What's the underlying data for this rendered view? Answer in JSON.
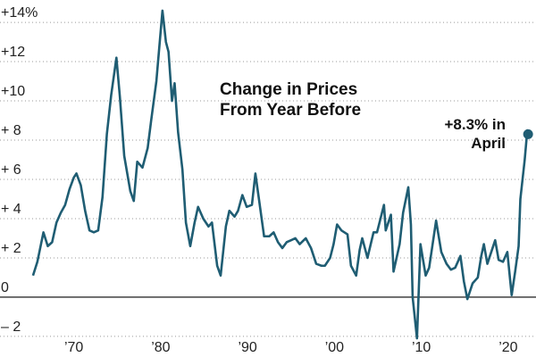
{
  "chart_data": {
    "type": "line",
    "title": [
      "Change in Prices",
      "From Year Before"
    ],
    "annotation": [
      "+8.3% in",
      "April"
    ],
    "xlim": [
      1961.5,
      2023.2
    ],
    "ylim": [
      -3.05,
      15.14
    ],
    "xticks": [
      {
        "value": 1970,
        "label": "’70"
      },
      {
        "value": 1980,
        "label": "’80"
      },
      {
        "value": 1990,
        "label": "’90"
      },
      {
        "value": 2000,
        "label": "’00"
      },
      {
        "value": 2010,
        "label": "’10"
      },
      {
        "value": 2020,
        "label": "’20"
      }
    ],
    "yticks": [
      {
        "value": -2,
        "label": "– 2"
      },
      0,
      {
        "value": 2,
        "label": "+ 2"
      },
      {
        "value": 4,
        "label": "+ 4"
      },
      {
        "value": 6,
        "label": "+ 6"
      },
      {
        "value": 8,
        "label": "+ 8"
      },
      {
        "value": 10,
        "label": "+10"
      },
      {
        "value": 12,
        "label": "+12"
      },
      {
        "value": 14,
        "label": "+14%"
      }
    ],
    "grid": true,
    "series": [
      {
        "color": "#1f5d73",
        "x": [
          1965.3,
          1965.8,
          1966.5,
          1967.0,
          1967.5,
          1968.0,
          1968.5,
          1969.0,
          1969.5,
          1970.0,
          1970.3,
          1970.8,
          1971.3,
          1971.8,
          1972.3,
          1972.8,
          1973.3,
          1973.8,
          1974.3,
          1974.9,
          1975.3,
          1975.8,
          1976.5,
          1976.9,
          1977.3,
          1977.9,
          1978.5,
          1978.9,
          1979.5,
          1980.2,
          1980.6,
          1980.9,
          1981.3,
          1981.6,
          1982.0,
          1982.5,
          1982.9,
          1983.4,
          1983.9,
          1984.3,
          1984.9,
          1985.5,
          1985.9,
          1986.5,
          1986.9,
          1987.5,
          1987.9,
          1988.5,
          1988.9,
          1989.4,
          1989.9,
          1990.5,
          1990.9,
          1991.4,
          1991.9,
          1992.5,
          1993.0,
          1993.5,
          1994.0,
          1994.5,
          1995.0,
          1995.5,
          1996.0,
          1996.7,
          1997.3,
          1997.9,
          1998.5,
          1998.9,
          1999.5,
          1999.9,
          2000.3,
          2000.8,
          2001.5,
          2001.9,
          2002.5,
          2002.9,
          2003.2,
          2003.8,
          2004.5,
          2004.9,
          2005.7,
          2005.9,
          2006.5,
          2006.8,
          2007.5,
          2007.9,
          2008.5,
          2008.8,
          2009.0,
          2009.5,
          2009.9,
          2010.5,
          2010.9,
          2011.7,
          2012.3,
          2012.9,
          2013.4,
          2013.9,
          2014.5,
          2014.9,
          2015.3,
          2015.9,
          2016.5,
          2016.9,
          2017.2,
          2017.6,
          2018.5,
          2018.9,
          2019.4,
          2019.9,
          2020.4,
          2020.8,
          2021.2,
          2021.4,
          2021.9,
          2022.2,
          2022.29
        ],
        "values": [
          1.1,
          1.8,
          3.3,
          2.6,
          2.8,
          3.8,
          4.3,
          4.7,
          5.5,
          6.1,
          6.3,
          5.7,
          4.4,
          3.4,
          3.3,
          3.4,
          5.1,
          8.3,
          10.3,
          12.2,
          10.2,
          7.2,
          5.4,
          4.9,
          6.9,
          6.6,
          7.6,
          9.0,
          11.0,
          14.6,
          13.0,
          12.5,
          10.0,
          10.9,
          8.4,
          6.5,
          3.8,
          2.6,
          3.8,
          4.6,
          4.0,
          3.6,
          3.8,
          1.6,
          1.1,
          3.6,
          4.4,
          4.1,
          4.4,
          5.2,
          4.6,
          4.7,
          6.3,
          4.7,
          3.1,
          3.1,
          3.3,
          2.8,
          2.5,
          2.8,
          2.9,
          3.0,
          2.7,
          3.0,
          2.5,
          1.7,
          1.6,
          1.6,
          2.0,
          2.7,
          3.7,
          3.4,
          3.2,
          1.6,
          1.1,
          2.4,
          3.0,
          2.0,
          3.3,
          3.3,
          4.7,
          3.4,
          4.2,
          1.3,
          2.7,
          4.3,
          5.6,
          3.7,
          0.0,
          -2.1,
          2.7,
          1.1,
          1.5,
          3.9,
          2.3,
          1.7,
          1.4,
          1.5,
          2.1,
          0.8,
          -0.1,
          0.7,
          1.0,
          2.1,
          2.7,
          1.7,
          2.9,
          1.9,
          1.8,
          2.3,
          0.1,
          1.3,
          2.6,
          5.0,
          7.0,
          8.5,
          8.3
        ]
      }
    ]
  }
}
